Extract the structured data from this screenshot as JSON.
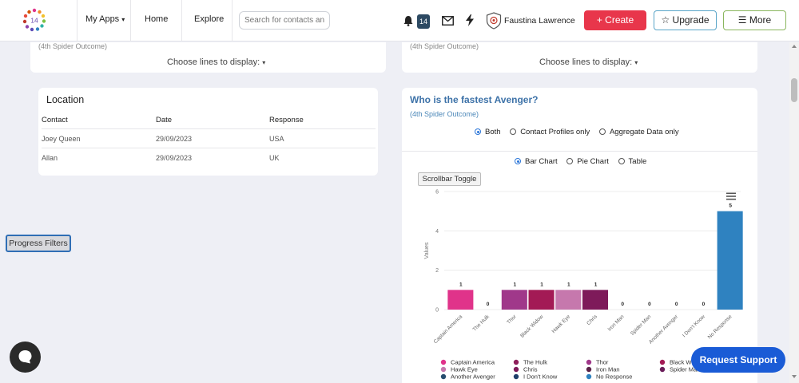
{
  "topbar": {
    "logo_text": "14",
    "my_apps": "My Apps",
    "home": "Home",
    "explore": "Explore",
    "search_placeholder": "Search for contacts and",
    "notification_count": "14",
    "user_name": "Faustina Lawrence",
    "create_label": "Create",
    "upgrade_label": "Upgrade",
    "more_label": "More"
  },
  "top_cards": {
    "left_subtitle": "(4th Spider Outcome)",
    "right_subtitle": "(4th Spider Outcome)",
    "choose_lines": "Choose lines to display:"
  },
  "location": {
    "title": "Location",
    "headers": [
      "Contact",
      "Date",
      "Response"
    ],
    "rows": [
      [
        "Joey Queen",
        "29/09/2023",
        "USA"
      ],
      [
        "Allan",
        "29/09/2023",
        "UK"
      ]
    ]
  },
  "avenger": {
    "title": "Who is the fastest Avenger?",
    "subtitle": "(4th Spider Outcome)",
    "source_options": [
      "Both",
      "Contact Profiles only",
      "Aggregate Data only"
    ],
    "source_selected": "Both",
    "view_options": [
      "Bar Chart",
      "Pie Chart",
      "Table"
    ],
    "view_selected": "Bar Chart",
    "scrollbar_toggle": "Scrollbar Toggle"
  },
  "chart_data": {
    "type": "bar",
    "categories": [
      "Captain America",
      "The Hulk",
      "Thor",
      "Black Widow",
      "Hawk Eye",
      "Chris",
      "Iron Man",
      "Spider Man",
      "Another Avenger",
      "I Don't Know",
      "No Response"
    ],
    "values": [
      1,
      0,
      1,
      1,
      1,
      1,
      0,
      0,
      0,
      0,
      5
    ],
    "colors": [
      "#e0338a",
      "#8e1f5b",
      "#a0388a",
      "#a31a55",
      "#c678ad",
      "#7e1a5a",
      "#5a2347",
      "#6b1e5a",
      "#274d6e",
      "#1f3f6a",
      "#2f82c0"
    ],
    "ylabel": "Values",
    "yticks": [
      0,
      2,
      4,
      6
    ],
    "ylim": [
      0,
      6
    ],
    "legend": [
      "Captain America",
      "The Hulk",
      "Thor",
      "Black Widow",
      "Hawk Eye",
      "Chris",
      "Iron Man",
      "Spider Man",
      "Another Avenger",
      "I Don't Know",
      "No Response"
    ],
    "legend_placement": "bottom"
  },
  "footer": {
    "progress_filters": "Progress Filters",
    "request_support": "Request Support"
  }
}
